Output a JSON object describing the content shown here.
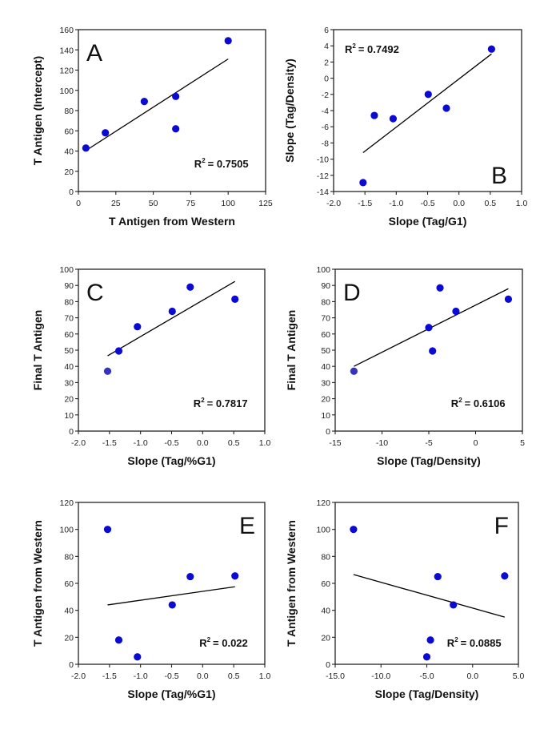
{
  "chart_data": [
    {
      "id": "A",
      "type": "scatter",
      "panel_label": "A",
      "xlabel": "T Antigen from Western",
      "ylabel": "T Antigen (Intercept)",
      "xlim": [
        0,
        125
      ],
      "ylim": [
        0,
        160
      ],
      "xticks": [
        0,
        25,
        50,
        75,
        100,
        125
      ],
      "yticks": [
        0,
        20,
        40,
        60,
        80,
        100,
        120,
        140,
        160
      ],
      "xtick_labels": [
        "0",
        "25",
        "50",
        "75",
        "100",
        "125"
      ],
      "ytick_labels": [
        "0",
        "20",
        "40",
        "60",
        "80",
        "100",
        "120",
        "140",
        "160"
      ],
      "points": [
        {
          "x": 5,
          "y": 43
        },
        {
          "x": 18,
          "y": 58
        },
        {
          "x": 44,
          "y": 89
        },
        {
          "x": 65,
          "y": 94
        },
        {
          "x": 65,
          "y": 62
        },
        {
          "x": 100,
          "y": 149
        }
      ],
      "trendline": {
        "x": [
          5,
          100
        ],
        "y": [
          40.5,
          131
        ]
      },
      "r2_text": "= 0.7505",
      "r2_value": 0.7505,
      "annotation_position": "bottom-right",
      "letter_position": "top-left",
      "grid": false
    },
    {
      "id": "B",
      "type": "scatter",
      "panel_label": "B",
      "xlabel": "Slope (Tag/G1)",
      "ylabel": "Slope (Tag/Density)",
      "xlim": [
        -2.0,
        1.0
      ],
      "ylim": [
        -14,
        6
      ],
      "xticks": [
        -2.0,
        -1.5,
        -1.0,
        -0.5,
        0.0,
        0.5,
        1.0
      ],
      "yticks": [
        -14,
        -12,
        -10,
        -8,
        -6,
        -4,
        -2,
        0,
        2,
        4,
        6
      ],
      "xtick_labels": [
        "-2.0",
        "-1.5",
        "-1.0",
        "-0.5",
        "0.0",
        "0.5",
        "1.0"
      ],
      "ytick_labels": [
        "-14",
        "-12",
        "-10",
        "-8",
        "-6",
        "-4",
        "-2",
        "0",
        "2",
        "4",
        "6"
      ],
      "points": [
        {
          "x": -1.53,
          "y": -12.9
        },
        {
          "x": -1.35,
          "y": -4.6
        },
        {
          "x": -1.05,
          "y": -5.0
        },
        {
          "x": -0.49,
          "y": -2.0
        },
        {
          "x": -0.2,
          "y": -3.7
        },
        {
          "x": 0.52,
          "y": 3.6
        }
      ],
      "trendline": {
        "x": [
          -1.53,
          0.52
        ],
        "y": [
          -9.2,
          3.0
        ]
      },
      "r2_text": "= 0.7492",
      "r2_value": 0.7492,
      "annotation_position": "top-left",
      "letter_position": "bottom-right",
      "grid": false
    },
    {
      "id": "C",
      "type": "scatter",
      "panel_label": "C",
      "xlabel": "Slope (Tag/%G1)",
      "ylabel": "Final T Antigen",
      "xlim": [
        -2.0,
        1.0
      ],
      "ylim": [
        0,
        100
      ],
      "xticks": [
        -2.0,
        -1.5,
        -1.0,
        -0.5,
        0.0,
        0.5,
        1.0
      ],
      "yticks": [
        0,
        10,
        20,
        30,
        40,
        50,
        60,
        70,
        80,
        90,
        100
      ],
      "xtick_labels": [
        "-2.0",
        "-1.5",
        "-1.0",
        "-0.5",
        "0.0",
        "0.5",
        "1.0"
      ],
      "ytick_labels": [
        "0",
        "10",
        "20",
        "30",
        "40",
        "50",
        "60",
        "70",
        "80",
        "90",
        "100"
      ],
      "points": [
        {
          "x": -1.53,
          "y": 37
        },
        {
          "x": -1.35,
          "y": 49.5
        },
        {
          "x": -1.05,
          "y": 64.5
        },
        {
          "x": -0.49,
          "y": 74
        },
        {
          "x": -0.2,
          "y": 89
        },
        {
          "x": 0.52,
          "y": 81.5
        }
      ],
      "trendline": {
        "x": [
          -1.53,
          0.52
        ],
        "y": [
          46.5,
          92.5
        ]
      },
      "r2_text": "= 0.7817",
      "r2_value": 0.7817,
      "annotation_position": "bottom-right",
      "letter_position": "top-left",
      "grid": false
    },
    {
      "id": "D",
      "type": "scatter",
      "panel_label": "D",
      "xlabel": "Slope (Tag/Density)",
      "ylabel": "Final T Antigen",
      "xlim": [
        -15,
        5
      ],
      "ylim": [
        0,
        100
      ],
      "xticks": [
        -15,
        -10,
        -5,
        0,
        5
      ],
      "yticks": [
        0,
        10,
        20,
        30,
        40,
        50,
        60,
        70,
        80,
        90,
        100
      ],
      "xtick_labels": [
        "-15",
        "-10",
        "-5",
        "0",
        "5"
      ],
      "ytick_labels": [
        "0",
        "10",
        "20",
        "30",
        "40",
        "50",
        "60",
        "70",
        "80",
        "90",
        "100"
      ],
      "points": [
        {
          "x": -13,
          "y": 37
        },
        {
          "x": -5.0,
          "y": 64
        },
        {
          "x": -4.6,
          "y": 49.5
        },
        {
          "x": -3.8,
          "y": 88.5
        },
        {
          "x": -2.1,
          "y": 74
        },
        {
          "x": 3.5,
          "y": 81.5
        }
      ],
      "trendline": {
        "x": [
          -13,
          3.5
        ],
        "y": [
          40,
          88
        ]
      },
      "r2_text": "= 0.6106",
      "r2_value": 0.6106,
      "annotation_position": "bottom-right",
      "letter_position": "top-left",
      "grid": false
    },
    {
      "id": "E",
      "type": "scatter",
      "panel_label": "E",
      "xlabel": "Slope (Tag/%G1)",
      "ylabel": "T Antigen from Western",
      "xlim": [
        -2.0,
        1.0
      ],
      "ylim": [
        0,
        120
      ],
      "xticks": [
        -2.0,
        -1.5,
        -1.0,
        -0.5,
        0.0,
        0.5,
        1.0
      ],
      "yticks": [
        0,
        20,
        40,
        60,
        80,
        100,
        120
      ],
      "xtick_labels": [
        "-2.0",
        "-1.5",
        "-1.0",
        "-0.5",
        "0.0",
        "0.5",
        "1.0"
      ],
      "ytick_labels": [
        "0",
        "20",
        "40",
        "60",
        "80",
        "100",
        "120"
      ],
      "points": [
        {
          "x": -1.53,
          "y": 100
        },
        {
          "x": -1.35,
          "y": 18
        },
        {
          "x": -1.05,
          "y": 5.5
        },
        {
          "x": -0.49,
          "y": 44
        },
        {
          "x": -0.2,
          "y": 65
        },
        {
          "x": 0.52,
          "y": 65.5
        }
      ],
      "trendline": {
        "x": [
          -1.53,
          0.52
        ],
        "y": [
          44,
          57.5
        ]
      },
      "r2_text": "= 0.022",
      "r2_value": 0.022,
      "annotation_position": "bottom-right",
      "letter_position": "top-right",
      "grid": false
    },
    {
      "id": "F",
      "type": "scatter",
      "panel_label": "F",
      "xlabel": "Slope (Tag/Density)",
      "ylabel": "T Antigen from Western",
      "xlim": [
        -15.0,
        5.0
      ],
      "ylim": [
        0,
        120
      ],
      "xticks": [
        -15.0,
        -10.0,
        -5.0,
        0.0,
        5.0
      ],
      "yticks": [
        0,
        20,
        40,
        60,
        80,
        100,
        120
      ],
      "xtick_labels": [
        "-15.0",
        "-10.0",
        "-5.0",
        "0.0",
        "5.0"
      ],
      "ytick_labels": [
        "0",
        "20",
        "40",
        "60",
        "80",
        "100",
        "120"
      ],
      "points": [
        {
          "x": -13,
          "y": 100
        },
        {
          "x": -5.0,
          "y": 5.5
        },
        {
          "x": -4.6,
          "y": 18
        },
        {
          "x": -3.8,
          "y": 65
        },
        {
          "x": -2.1,
          "y": 44
        },
        {
          "x": 3.5,
          "y": 65.5
        }
      ],
      "trendline": {
        "x": [
          -13,
          3.5
        ],
        "y": [
          66.5,
          35
        ]
      },
      "r2_text": "= 0.0885",
      "r2_value": 0.0885,
      "annotation_position": "bottom-right",
      "letter_position": "top-right",
      "grid": false
    }
  ],
  "colors": {
    "marker": "#0a0ad2",
    "marker_muted": "#3333bb",
    "trendline": "#000000",
    "axis": "#222222"
  },
  "r2_prefix": "R",
  "r2_superscript": "2"
}
